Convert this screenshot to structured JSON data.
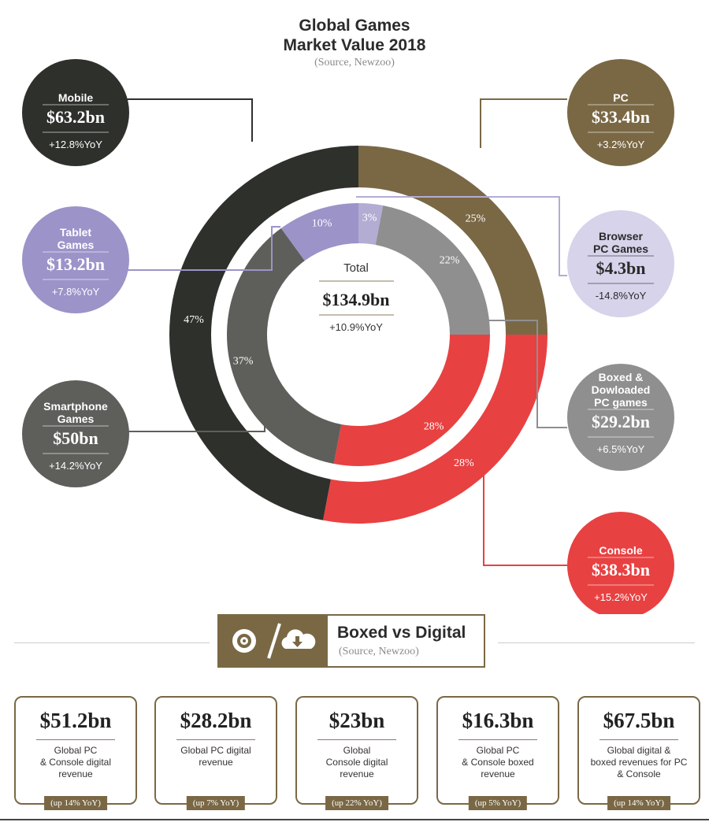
{
  "title": {
    "line1": "Global Games",
    "line2": "Market Value 2018",
    "source": "(Source, Newzoo)"
  },
  "chart_data": {
    "type": "pie",
    "variant": "nested-donut",
    "title": "Global Games Market Value 2018",
    "source": "(Source, Newzoo)",
    "center": {
      "label": "Total",
      "value": "$134.9bn",
      "yoy": "+10.9%YoY"
    },
    "outer_ring": [
      {
        "name": "PC",
        "percent": 25,
        "label": "25%",
        "color": "#7a6845"
      },
      {
        "name": "Console",
        "percent": 28,
        "label": "28%",
        "color": "#e84142"
      },
      {
        "name": "Mobile",
        "percent": 47,
        "label": "47%",
        "color": "#2e302c"
      }
    ],
    "inner_ring": [
      {
        "name": "Browser PC Games",
        "percent": 3,
        "label": "3%",
        "color": "#b3acd3"
      },
      {
        "name": "Boxed & Dowloaded PC games",
        "percent": 22,
        "label": "22%",
        "color": "#8f8f8f"
      },
      {
        "name": "Console",
        "percent": 28,
        "label": "28%",
        "color": "#e84142"
      },
      {
        "name": "Smartphone Games",
        "percent": 37,
        "label": "37%",
        "color": "#5e5f5b"
      },
      {
        "name": "Tablet Games",
        "percent": 10,
        "label": "10%",
        "color": "#9c93c9"
      }
    ],
    "callouts": [
      {
        "key": "mobile",
        "name": "Mobile",
        "value": "$63.2bn",
        "yoy": "+12.8%YoY",
        "color": "#2e302c"
      },
      {
        "key": "tablet",
        "name": "Tablet\nGames",
        "value": "$13.2bn",
        "yoy": "+7.8%YoY",
        "color": "#9c93c9"
      },
      {
        "key": "smartphone",
        "name": "Smartphone\nGames",
        "value": "$50bn",
        "yoy": "+14.2%YoY",
        "color": "#5e5f5b"
      },
      {
        "key": "pc",
        "name": "PC",
        "value": "$33.4bn",
        "yoy": "+3.2%YoY",
        "color": "#7a6845"
      },
      {
        "key": "browser",
        "name": "Browser\nPC Games",
        "value": "$4.3bn",
        "yoy": "-14.8%YoY",
        "color": "#d6d3ea"
      },
      {
        "key": "boxed",
        "name": "Boxed &\nDowloaded\nPC games",
        "value": "$29.2bn",
        "yoy": "+6.5%YoY",
        "color": "#8f8f8f"
      },
      {
        "key": "console",
        "name": "Console",
        "value": "$38.3bn",
        "yoy": "+15.2%YoY",
        "color": "#e84142"
      }
    ]
  },
  "boxed_vs_digital": {
    "title": "Boxed vs Digital",
    "source": "(Source, Newzoo)",
    "icons": [
      "disc-icon",
      "cloud-download-icon"
    ],
    "cards": [
      {
        "value": "$51.2bn",
        "desc": "Global PC\n& Console digital\nrevenue",
        "badge": "(up 14% YoY)"
      },
      {
        "value": "$28.2bn",
        "desc": "Global PC digital\nrevenue",
        "badge": "(up 7% YoY)"
      },
      {
        "value": "$23bn",
        "desc": "Global\nConsole digital\nrevenue",
        "badge": "(up 22% YoY)"
      },
      {
        "value": "$16.3bn",
        "desc": "Global PC\n& Console boxed\nrevenue",
        "badge": "(up 5% YoY)"
      },
      {
        "value": "$67.5bn",
        "desc": "Global digital &\nboxed revenues for PC\n& Console",
        "badge": "(up 14% YoY)"
      }
    ]
  },
  "colors": {
    "accent": "#7a6845",
    "console": "#e84142",
    "mobile": "#2e302c"
  }
}
